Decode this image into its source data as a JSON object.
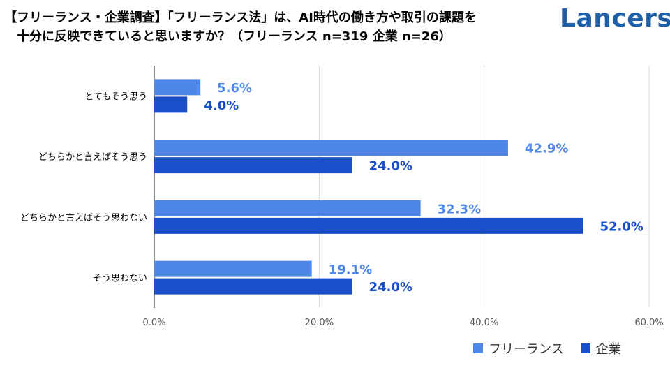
{
  "header": {
    "title_line1": "【フリーランス・企業調査】「フリーランス法」は、AI時代の働き方や取引の課題を",
    "title_line2": "十分に反映できていると思いますか？（フリーランス n=319 企業 n=26）",
    "logo": "Lancers"
  },
  "colors": {
    "freelance": "#4f87e8",
    "company": "#1a4fc9",
    "grid": "#d9d9d9",
    "logo": "#1f5fa8"
  },
  "chart_data": {
    "type": "bar",
    "orientation": "horizontal",
    "categories": [
      "とてもそう思う",
      "どちらかと言えばそう思う",
      "どちらかと言えばそう思わない",
      "そう思わない"
    ],
    "series": [
      {
        "name": "フリーランス",
        "values": [
          5.6,
          42.9,
          32.3,
          19.1
        ],
        "labels": [
          "5.6%",
          "42.9%",
          "32.3%",
          "19.1%"
        ]
      },
      {
        "name": "企業",
        "values": [
          4.0,
          24.0,
          52.0,
          24.0
        ],
        "labels": [
          "4.0%",
          "24.0%",
          "52.0%",
          "24.0%"
        ]
      }
    ],
    "xlim": [
      0,
      60
    ],
    "xticks": [
      0,
      20,
      40,
      60
    ],
    "xtick_labels": [
      "0.0%",
      "20.0%",
      "40.0%",
      "60.0%"
    ],
    "grid": true,
    "legend_position": "bottom-right"
  }
}
